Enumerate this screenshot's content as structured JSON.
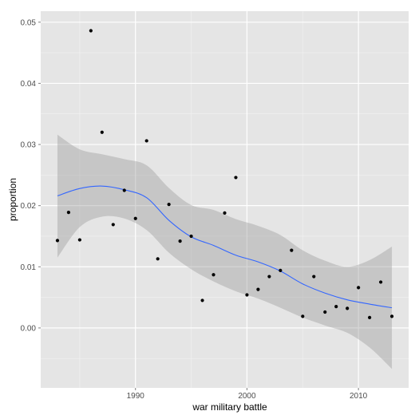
{
  "chart_data": {
    "type": "scatter",
    "title": "",
    "xlabel": "war military battle",
    "ylabel": "proportion",
    "xlim": [
      1981.5,
      2014.5
    ],
    "ylim": [
      -0.0098,
      0.0518
    ],
    "grid": true,
    "background": "#e5e5e5",
    "x_ticks": [
      1990,
      2000,
      2010
    ],
    "x_tick_labels": [
      "1990",
      "2000",
      "2010"
    ],
    "y_ticks": [
      0.0,
      0.01,
      0.02,
      0.03,
      0.04,
      0.05
    ],
    "y_tick_labels": [
      "0.00",
      "0.01",
      "0.02",
      "0.03",
      "0.04",
      "0.05"
    ],
    "points": {
      "color": "#000000",
      "x": [
        1983,
        1984,
        1985,
        1986,
        1987,
        1988,
        1989,
        1990,
        1991,
        1992,
        1993,
        1994,
        1995,
        1996,
        1997,
        1998,
        1999,
        2000,
        2001,
        2002,
        2003,
        2004,
        2005,
        2006,
        2007,
        2008,
        2009,
        2010,
        2011,
        2012,
        2013
      ],
      "y": [
        0.0143,
        0.0189,
        0.0144,
        0.0486,
        0.032,
        0.0169,
        0.0225,
        0.0179,
        0.0306,
        0.0113,
        0.0202,
        0.0142,
        0.015,
        0.0045,
        0.0087,
        0.0188,
        0.0246,
        0.0054,
        0.0063,
        0.0084,
        0.0094,
        0.0127,
        0.0019,
        0.0084,
        0.0026,
        0.0035,
        0.0032,
        0.0066,
        0.0017,
        0.0075,
        0.0019
      ]
    },
    "smooth": {
      "color": "#3366ff",
      "band_color": "#999999",
      "x": [
        1983,
        1985,
        1987,
        1989,
        1991,
        1993,
        1995,
        1997,
        1999,
        2001,
        2003,
        2005,
        2007,
        2009,
        2011,
        2013
      ],
      "y": [
        0.0216,
        0.0228,
        0.0232,
        0.0226,
        0.0213,
        0.0176,
        0.0149,
        0.0135,
        0.0119,
        0.0108,
        0.0093,
        0.0072,
        0.0057,
        0.0046,
        0.0039,
        0.0033
      ],
      "lower": [
        0.0115,
        0.0165,
        0.0182,
        0.0179,
        0.016,
        0.0123,
        0.0096,
        0.0076,
        0.006,
        0.0048,
        0.0033,
        0.0017,
        0.0004,
        -0.0008,
        -0.0032,
        -0.0067
      ],
      "upper": [
        0.0316,
        0.0292,
        0.0284,
        0.0276,
        0.0266,
        0.0229,
        0.0201,
        0.0193,
        0.0178,
        0.0167,
        0.0152,
        0.0127,
        0.011,
        0.01,
        0.0111,
        0.0133
      ]
    }
  }
}
